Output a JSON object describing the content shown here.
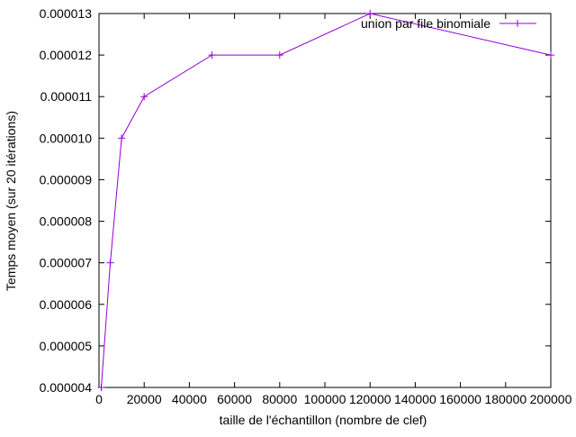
{
  "chart_data": {
    "type": "line",
    "title": "",
    "xlabel": "taille de l'échantillon (nombre de clef)",
    "ylabel": "Temps moyen (sur 20 itérations)",
    "xlim": [
      0,
      200000
    ],
    "ylim": [
      4e-06,
      1.3e-05
    ],
    "xticks": [
      0,
      20000,
      40000,
      60000,
      80000,
      100000,
      120000,
      140000,
      160000,
      180000,
      200000
    ],
    "xtick_labels": [
      "0",
      "20000",
      "40000",
      "60000",
      "80000",
      "100000",
      "120000",
      "140000",
      "160000",
      "180000",
      "200000"
    ],
    "yticks": [
      4e-06,
      5e-06,
      6e-06,
      7e-06,
      8e-06,
      9e-06,
      1e-05,
      1.1e-05,
      1.2e-05,
      1.3e-05
    ],
    "ytick_labels": [
      "0.000004",
      "0.000005",
      "0.000006",
      "0.000007",
      "0.000008",
      "0.000009",
      "0.000010",
      "0.000011",
      "0.000012",
      "0.000013"
    ],
    "grid": false,
    "legend_position": "top-right",
    "series": [
      {
        "name": "union par file binomiale",
        "color": "#9400d3",
        "marker": "plus",
        "x": [
          1000,
          5000,
          10000,
          20000,
          50000,
          80000,
          120000,
          200000
        ],
        "y": [
          4e-06,
          7e-06,
          1e-05,
          1.1e-05,
          1.2e-05,
          1.2e-05,
          1.3e-05,
          1.2e-05
        ]
      }
    ]
  }
}
